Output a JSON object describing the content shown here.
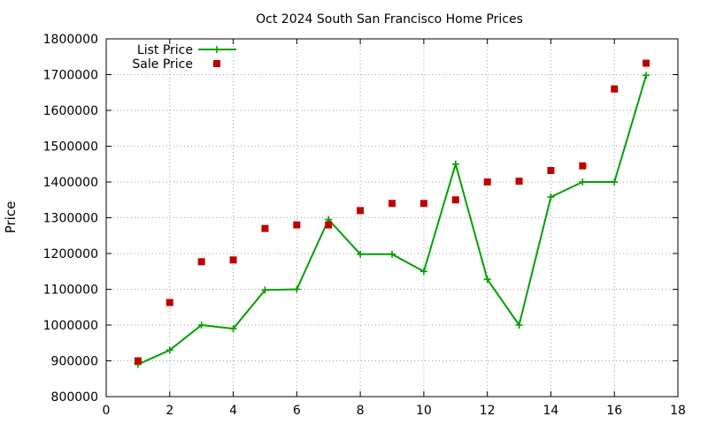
{
  "chart_data": {
    "type": "line",
    "title": "Oct 2024 South San Francisco Home Prices",
    "xlabel": "",
    "ylabel": "Price",
    "xlim": [
      0,
      18
    ],
    "ylim": [
      800000,
      1800000
    ],
    "x_ticks": [
      "0",
      "2",
      "4",
      "6",
      "8",
      "10",
      "12",
      "14",
      "16",
      "18"
    ],
    "y_ticks": [
      "800000",
      "900000",
      "1000000",
      "1100000",
      "1200000",
      "1300000",
      "1400000",
      "1500000",
      "1600000",
      "1700000",
      "1800000"
    ],
    "grid": true,
    "legend_position": "top-left",
    "series": [
      {
        "name": "List Price",
        "style": "linespoints",
        "marker": "plus",
        "color": "#00a000",
        "x": [
          1,
          2,
          3,
          4,
          5,
          6,
          7,
          8,
          9,
          10,
          11,
          12,
          13,
          14,
          15,
          16,
          17
        ],
        "values": [
          890000,
          930000,
          1000000,
          990000,
          1098000,
          1100000,
          1295000,
          1198000,
          1198000,
          1150000,
          1450000,
          1128000,
          1000000,
          1358000,
          1400000,
          1400000,
          1698000
        ]
      },
      {
        "name": "Sale Price",
        "style": "points",
        "marker": "square",
        "color": "#c00000",
        "x": [
          1,
          2,
          3,
          4,
          5,
          6,
          7,
          8,
          9,
          10,
          11,
          12,
          13,
          14,
          15,
          16,
          17
        ],
        "values": [
          900000,
          1063000,
          1177000,
          1182000,
          1270000,
          1280000,
          1280000,
          1320000,
          1340000,
          1340000,
          1350000,
          1400000,
          1402000,
          1432000,
          1445000,
          1660000,
          1732000
        ]
      }
    ]
  }
}
